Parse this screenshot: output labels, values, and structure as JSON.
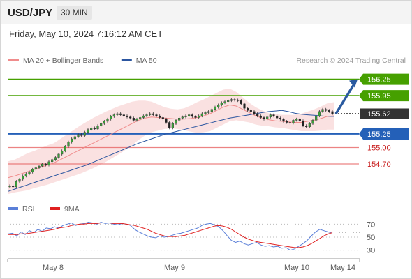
{
  "header": {
    "symbol": "USD/JPY",
    "timeframe": "30 MIN",
    "date": "Friday, May 10, 2024 7:16:12 AM CET"
  },
  "colors": {
    "green": "#46a000",
    "blue": "#2460b8",
    "red": "#e55a5a",
    "pink": "#f4b8b8",
    "dark": "#333333"
  },
  "legend": [
    {
      "label": "MA 20 + Bollinger Bands",
      "color": "#f08c8c"
    },
    {
      "label": "MA 50",
      "color": "#2b56a0"
    }
  ],
  "credit": "Research © 2024 Trading Central",
  "chart_data": [
    {
      "type": "candlestick",
      "title": "",
      "y_range": [
        154.1,
        156.45
      ],
      "x_ticks": [
        "May 8",
        "May 9",
        "May 10",
        "May 14"
      ],
      "levels": [
        {
          "label": "156.25",
          "value": 156.25,
          "style": "green"
        },
        {
          "label": "155.95",
          "value": 155.95,
          "style": "green"
        },
        {
          "label": "155.62",
          "value": 155.62,
          "style": "current"
        },
        {
          "label": "155.25",
          "value": 155.25,
          "style": "blue"
        },
        {
          "label": "155.00",
          "value": 155.0,
          "style": "red"
        },
        {
          "label": "154.70",
          "value": 154.7,
          "style": "red"
        }
      ],
      "closes": [
        154.3,
        154.28,
        154.38,
        154.42,
        154.48,
        154.52,
        154.55,
        154.6,
        154.63,
        154.66,
        154.7,
        154.68,
        154.74,
        154.78,
        154.82,
        154.88,
        154.94,
        155.02,
        155.1,
        155.16,
        155.2,
        155.24,
        155.22,
        155.28,
        155.33,
        155.36,
        155.34,
        155.4,
        155.44,
        155.48,
        155.52,
        155.57,
        155.6,
        155.62,
        155.6,
        155.58,
        155.56,
        155.54,
        155.5,
        155.52,
        155.55,
        155.58,
        155.6,
        155.62,
        155.6,
        155.58,
        155.55,
        155.52,
        155.46,
        155.36,
        155.44,
        155.5,
        155.54,
        155.56,
        155.58,
        155.6,
        155.57,
        155.55,
        155.58,
        155.62,
        155.64,
        155.66,
        155.7,
        155.74,
        155.78,
        155.82,
        155.84,
        155.86,
        155.88,
        155.87,
        155.86,
        155.8,
        155.72,
        155.68,
        155.66,
        155.62,
        155.58,
        155.55,
        155.52,
        155.56,
        155.6,
        155.58,
        155.54,
        155.52,
        155.48,
        155.46,
        155.45,
        155.5,
        155.52,
        155.49,
        155.4,
        155.38,
        155.44,
        155.5,
        155.58,
        155.66,
        155.7,
        155.68,
        155.66,
        155.62
      ],
      "ma50": [
        154.2,
        154.24,
        154.28,
        154.32,
        154.36,
        154.4,
        154.44,
        154.48,
        154.52,
        154.56,
        154.6,
        154.64,
        154.68,
        154.73,
        154.78,
        154.83,
        154.88,
        154.93,
        154.98,
        155.03,
        155.08,
        155.12,
        155.16,
        155.2,
        155.24,
        155.27,
        155.3,
        155.33,
        155.36,
        155.39,
        155.42,
        155.45,
        155.48,
        155.51,
        155.54,
        155.56,
        155.58,
        155.6,
        155.62,
        155.64,
        155.66,
        155.67,
        155.68,
        155.66,
        155.63,
        155.61,
        155.6,
        155.59,
        155.58,
        155.57,
        155.57
      ],
      "ma20": [
        154.45,
        154.48,
        154.52,
        154.56,
        154.6,
        154.64,
        154.68,
        154.72,
        154.78,
        154.84,
        154.9,
        154.96,
        155.02,
        155.08,
        155.14,
        155.2,
        155.26,
        155.32,
        155.38,
        155.44,
        155.5,
        155.54,
        155.56,
        155.55,
        155.54,
        155.53,
        155.52,
        155.52,
        155.53,
        155.55,
        155.58,
        155.62,
        155.68,
        155.74,
        155.78,
        155.76,
        155.7,
        155.64,
        155.58,
        155.54,
        155.51,
        155.49,
        155.48,
        155.47,
        155.46,
        155.46,
        155.48,
        155.5,
        155.53,
        155.57,
        155.58
      ],
      "bb_width": [
        0.3,
        0.3,
        0.32,
        0.34,
        0.34,
        0.35,
        0.36,
        0.36,
        0.38,
        0.4,
        0.42,
        0.44,
        0.45,
        0.46,
        0.46,
        0.46,
        0.45,
        0.44,
        0.42,
        0.4,
        0.36,
        0.32,
        0.28,
        0.24,
        0.2,
        0.18,
        0.18,
        0.2,
        0.24,
        0.28,
        0.3,
        0.32,
        0.32,
        0.32,
        0.3,
        0.26,
        0.22,
        0.18,
        0.16,
        0.14,
        0.12,
        0.12,
        0.12,
        0.13,
        0.14,
        0.16,
        0.18,
        0.2,
        0.22,
        0.24,
        0.25
      ],
      "forecast": {
        "from": 155.62,
        "to": 156.25
      }
    },
    {
      "type": "line",
      "title": "",
      "y_range": [
        20,
        80
      ],
      "y_ticks": [
        70,
        50,
        30
      ],
      "legend": [
        {
          "label": "RSI",
          "color": "#5a7fd8"
        },
        {
          "label": "9MA",
          "color": "#e02020"
        }
      ],
      "series": [
        {
          "name": "RSI",
          "values": [
            55,
            56,
            52,
            58,
            54,
            60,
            57,
            62,
            59,
            64,
            63,
            66,
            64,
            68,
            70,
            72,
            68,
            70,
            71,
            73,
            72,
            70,
            73,
            71,
            72,
            70,
            69,
            71,
            70,
            68,
            62,
            58,
            55,
            52,
            50,
            49,
            52,
            50,
            51,
            53,
            55,
            56,
            58,
            60,
            62,
            64,
            68,
            70,
            71,
            69,
            66,
            60,
            52,
            45,
            42,
            44,
            40,
            38,
            40,
            42,
            38,
            36,
            37,
            35,
            36,
            33,
            34,
            30,
            32,
            36,
            40,
            45,
            52,
            58,
            62,
            60,
            58,
            56
          ]
        },
        {
          "name": "9MA",
          "values": [
            54,
            54,
            54,
            55,
            55,
            56,
            57,
            58,
            59,
            60,
            61,
            62,
            64,
            65,
            66,
            68,
            69,
            70,
            70,
            71,
            71,
            71,
            72,
            72,
            72,
            71,
            71,
            71,
            70,
            69,
            68,
            66,
            64,
            62,
            59,
            56,
            54,
            52,
            51,
            51,
            51,
            52,
            53,
            55,
            57,
            59,
            61,
            63,
            65,
            67,
            68,
            67,
            65,
            62,
            58,
            54,
            50,
            47,
            45,
            43,
            42,
            41,
            40,
            39,
            38,
            37,
            36,
            35,
            34,
            34,
            35,
            37,
            40,
            44,
            48,
            52,
            55,
            57
          ]
        }
      ]
    }
  ]
}
